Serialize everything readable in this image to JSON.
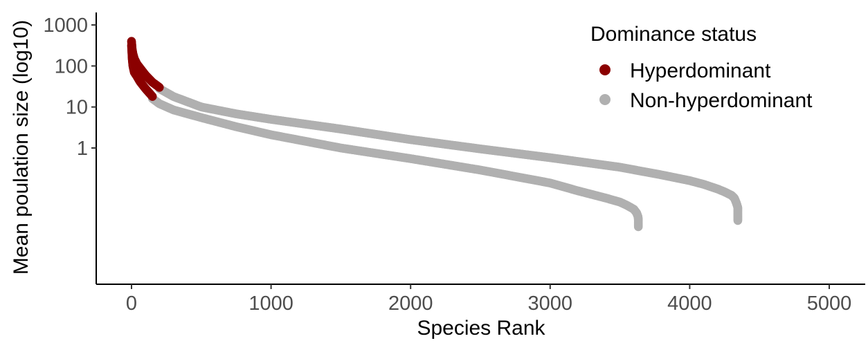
{
  "chart_data": {
    "type": "scatter",
    "title": "",
    "xlabel": "Species Rank",
    "ylabel": "Mean poulation size (log10)",
    "x_scale": "linear",
    "y_scale": "log10",
    "xlim": [
      -230,
      5230
    ],
    "ylim": [
      0.011,
      1800
    ],
    "x_ticks": [
      0,
      1000,
      2000,
      3000,
      4000,
      5000
    ],
    "x_tick_labels": [
      "0",
      "1000",
      "2000",
      "3000",
      "4000",
      "5000"
    ],
    "y_ticks": [
      1,
      10,
      100,
      1000
    ],
    "y_tick_labels": [
      "1",
      "10",
      "100",
      "1000"
    ],
    "grid": false,
    "legend": {
      "title": "Dominance status",
      "position": "top-right",
      "entries": [
        {
          "label": "Hyperdominant",
          "color": "#8b0000"
        },
        {
          "label": "Non-hyperdominant",
          "color": "#b0b0b0"
        }
      ]
    },
    "series": [
      {
        "name": "Hyperdominant",
        "color": "#8b0000",
        "curves": [
          [
            [
              0,
              400
            ],
            [
              5,
              250
            ],
            [
              10,
              200
            ],
            [
              20,
              150
            ],
            [
              40,
              110
            ],
            [
              60,
              90
            ],
            [
              100,
              60
            ],
            [
              150,
              40
            ],
            [
              200,
              30
            ]
          ],
          [
            [
              0,
              320
            ],
            [
              5,
              150
            ],
            [
              10,
              100
            ],
            [
              20,
              70
            ],
            [
              40,
              55
            ],
            [
              60,
              42
            ],
            [
              100,
              28
            ],
            [
              150,
              18
            ]
          ]
        ]
      },
      {
        "name": "Non-hyperdominant",
        "color": "#b0b0b0",
        "curves": [
          [
            [
              200,
              28
            ],
            [
              300,
              18
            ],
            [
              500,
              10
            ],
            [
              750,
              6.8
            ],
            [
              1000,
              5
            ],
            [
              1500,
              2.9
            ],
            [
              2000,
              1.6
            ],
            [
              2500,
              0.95
            ],
            [
              3000,
              0.58
            ],
            [
              3500,
              0.34
            ],
            [
              3800,
              0.22
            ],
            [
              4000,
              0.16
            ],
            [
              4100,
              0.13
            ],
            [
              4200,
              0.1
            ],
            [
              4250,
              0.085
            ],
            [
              4300,
              0.07
            ],
            [
              4320,
              0.06
            ],
            [
              4330,
              0.05
            ],
            [
              4335,
              0.045
            ],
            [
              4340,
              0.04
            ],
            [
              4345,
              0.035
            ],
            [
              4345,
              0.023
            ],
            [
              4345,
              0.017
            ]
          ],
          [
            [
              150,
              16
            ],
            [
              200,
              12
            ],
            [
              300,
              8.5
            ],
            [
              500,
              5.5
            ],
            [
              750,
              3.3
            ],
            [
              1000,
              2.1
            ],
            [
              1500,
              1.0
            ],
            [
              2000,
              0.55
            ],
            [
              2500,
              0.29
            ],
            [
              3000,
              0.14
            ],
            [
              3200,
              0.09
            ],
            [
              3400,
              0.06
            ],
            [
              3500,
              0.048
            ],
            [
              3550,
              0.04
            ],
            [
              3600,
              0.032
            ],
            [
              3620,
              0.026
            ],
            [
              3630,
              0.021
            ],
            [
              3632,
              0.018
            ],
            [
              3632,
              0.015
            ],
            [
              3632,
              0.012
            ]
          ]
        ]
      }
    ]
  }
}
